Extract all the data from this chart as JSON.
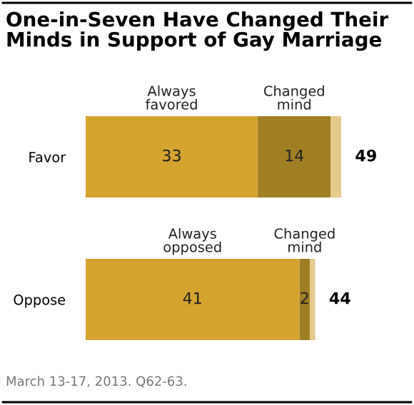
{
  "chart_data": {
    "type": "bar",
    "orientation": "horizontal",
    "stacked": true,
    "title": "One-in-Seven Have Changed Their\nMinds in Support of Gay Marriage",
    "categories": [
      "Favor",
      "Oppose"
    ],
    "series": [
      {
        "color": "#d4a42f",
        "values": [
          33,
          41
        ],
        "value_labels": [
          "33",
          "41"
        ]
      },
      {
        "color": "#a07f24",
        "values": [
          14,
          2
        ],
        "value_labels": [
          "14",
          "2"
        ]
      },
      {
        "color": "#e3c98a",
        "values": [
          2,
          1
        ],
        "value_labels": [
          null,
          null
        ]
      }
    ],
    "totals": [
      "49",
      "44"
    ],
    "annotations": [
      "Always\nfavored",
      "Changed\nmind",
      "Always\nopposed",
      "Changed\nmind",
      "March 13-17, 2013. Q62-63."
    ],
    "legend": false,
    "grid": false
  }
}
